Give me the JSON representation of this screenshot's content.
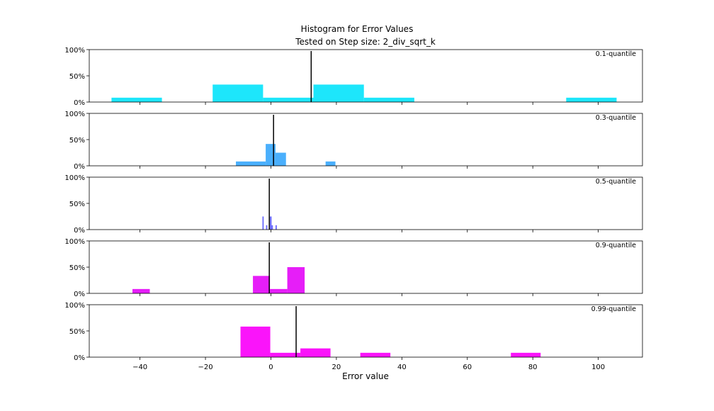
{
  "chart_data": {
    "type": "bar",
    "title": "Histogram for Error Values",
    "subtitle": "Tested on Step size: 2_div_sqrt_k",
    "xlabel": "Error value",
    "xlim": [
      -55.5,
      113.5
    ],
    "xticks": [
      -40,
      -20,
      0,
      20,
      40,
      60,
      80,
      100
    ],
    "xtick_labels": [
      "−40",
      "−20",
      "0",
      "20",
      "40",
      "60",
      "80",
      "100"
    ],
    "ylim": [
      0,
      1.0
    ],
    "yticks": [
      0,
      0.5,
      1.0
    ],
    "ytick_labels": [
      "0%",
      "50%",
      "100%"
    ],
    "grid": false,
    "panels": [
      {
        "label": "0.1-quantile",
        "color": "#1de6fb",
        "marker": 12.3,
        "bars": [
          {
            "x0": -48.7,
            "x1": -33.3,
            "value": 0.083
          },
          {
            "x0": -17.8,
            "x1": -2.4,
            "value": 0.333
          },
          {
            "x0": -2.4,
            "x1": 13.0,
            "value": 0.083
          },
          {
            "x0": 13.0,
            "x1": 28.4,
            "value": 0.333
          },
          {
            "x0": 28.4,
            "x1": 43.8,
            "value": 0.083
          },
          {
            "x0": 90.2,
            "x1": 105.6,
            "value": 0.083
          }
        ]
      },
      {
        "label": "0.3-quantile",
        "color": "#4aaffc",
        "marker": 0.8,
        "bars": [
          {
            "x0": -10.7,
            "x1": -1.6,
            "value": 0.083
          },
          {
            "x0": -1.6,
            "x1": 1.4,
            "value": 0.417
          },
          {
            "x0": 1.4,
            "x1": 4.6,
            "value": 0.25
          },
          {
            "x0": 16.7,
            "x1": 19.7,
            "value": 0.083
          }
        ]
      },
      {
        "label": "0.5-quantile",
        "color": "#6a6afc",
        "marker": -0.5,
        "bars": [
          {
            "x0": -2.6,
            "x1": -2.2,
            "value": 0.25
          },
          {
            "x0": -1.5,
            "x1": -1.1,
            "value": 0.083
          },
          {
            "x0": -0.3,
            "x1": 0.2,
            "value": 0.25
          },
          {
            "x0": 0.2,
            "x1": 0.6,
            "value": 0.083
          },
          {
            "x0": 1.4,
            "x1": 1.8,
            "value": 0.083
          }
        ]
      },
      {
        "label": "0.9-quantile",
        "color": "#e61ef8",
        "marker": -0.5,
        "bars": [
          {
            "x0": -42.3,
            "x1": -37.0,
            "value": 0.083
          },
          {
            "x0": -5.5,
            "x1": -0.3,
            "value": 0.333
          },
          {
            "x0": -0.3,
            "x1": 5.0,
            "value": 0.083
          },
          {
            "x0": 5.0,
            "x1": 10.3,
            "value": 0.5
          }
        ]
      },
      {
        "label": "0.99-quantile",
        "color": "#fa14fa",
        "marker": 7.7,
        "bars": [
          {
            "x0": -9.3,
            "x1": -0.2,
            "value": 0.583
          },
          {
            "x0": -0.2,
            "x1": 9.0,
            "value": 0.083
          },
          {
            "x0": 9.0,
            "x1": 18.2,
            "value": 0.167
          },
          {
            "x0": 27.3,
            "x1": 36.5,
            "value": 0.083
          },
          {
            "x0": 73.3,
            "x1": 82.4,
            "value": 0.083
          }
        ]
      }
    ]
  }
}
